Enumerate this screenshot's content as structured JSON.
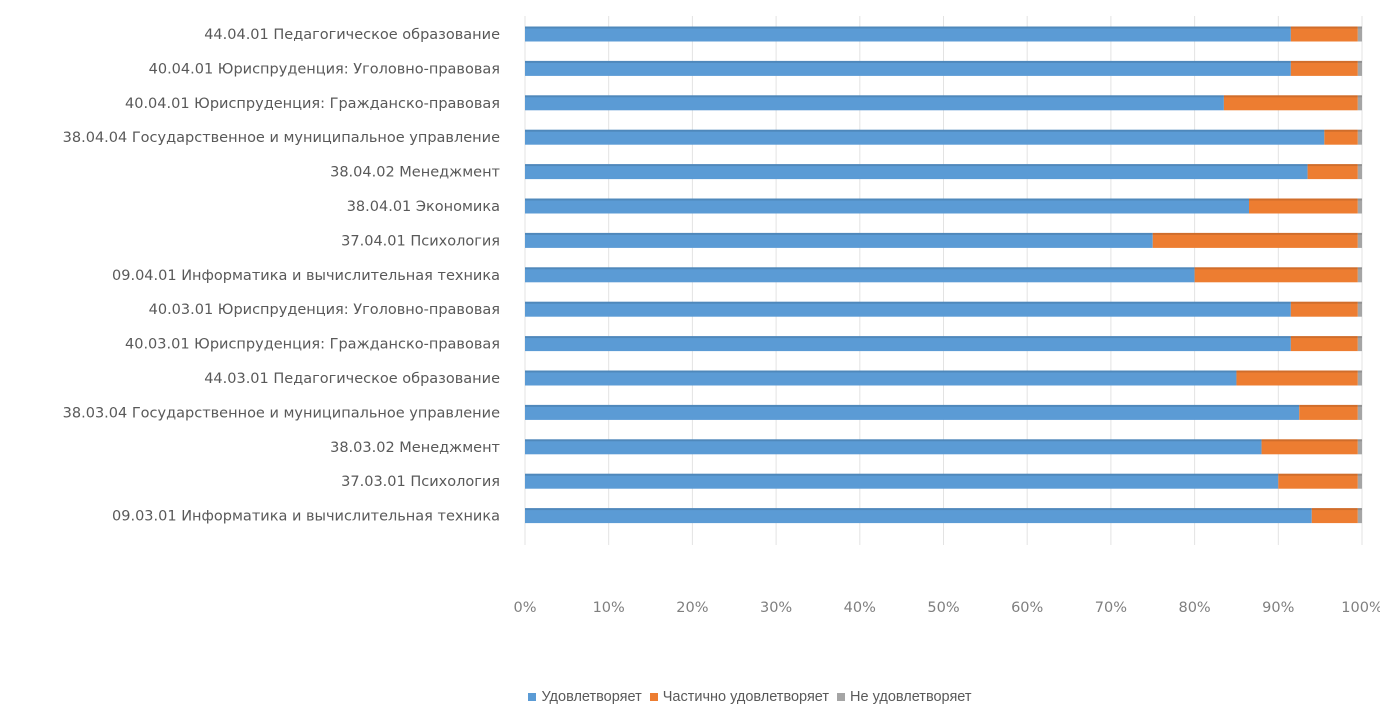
{
  "chart_data": {
    "type": "bar",
    "orientation": "horizontal",
    "stacked": "percent",
    "categories": [
      "44.04.01 Педагогическое образование",
      "40.04.01 Юриспруденция: Уголовно-правовая",
      "40.04.01 Юриспруденция: Гражданско-правовая",
      "38.04.04 Государственное и муниципальное управление",
      "38.04.02 Менеджмент",
      "38.04.01 Экономика",
      "37.04.01 Психология",
      "09.04.01 Информатика и вычислительная техника",
      "40.03.01 Юриспруденция: Уголовно-правовая",
      "40.03.01 Юриспруденция: Гражданско-правовая",
      "44.03.01 Педагогическое образование",
      "38.03.04 Государственное и муниципальное управление",
      "38.03.02 Менеджмент",
      "37.03.01 Психология",
      "09.03.01 Информатика и вычислительная техника"
    ],
    "series": [
      {
        "name": "Удовлетворяет",
        "color": "#5b9bd5",
        "values": [
          91.5,
          91.5,
          83.5,
          95.5,
          93.5,
          86.5,
          75,
          80,
          91.5,
          91.5,
          85,
          92.5,
          88,
          90,
          94
        ]
      },
      {
        "name": "Частично удовлетворяет",
        "color": "#ed7d31",
        "values": [
          8,
          8,
          16,
          4,
          6,
          13,
          24.5,
          19.5,
          8,
          8,
          14.5,
          7,
          11.5,
          9.5,
          5.5
        ]
      },
      {
        "name": "Не удовлетворяет",
        "color": "#a5a5a5",
        "values": [
          0.5,
          0.5,
          0.5,
          0.5,
          0.5,
          0.5,
          0.5,
          0.5,
          0.5,
          0.5,
          0.5,
          0.5,
          0.5,
          0.5,
          0.5
        ]
      }
    ],
    "x_ticks": [
      "0%",
      "10%",
      "20%",
      "30%",
      "40%",
      "50%",
      "60%",
      "70%",
      "80%",
      "90%",
      "100%"
    ],
    "xlim": [
      0,
      100
    ],
    "grid": true,
    "legend_position": "bottom"
  }
}
